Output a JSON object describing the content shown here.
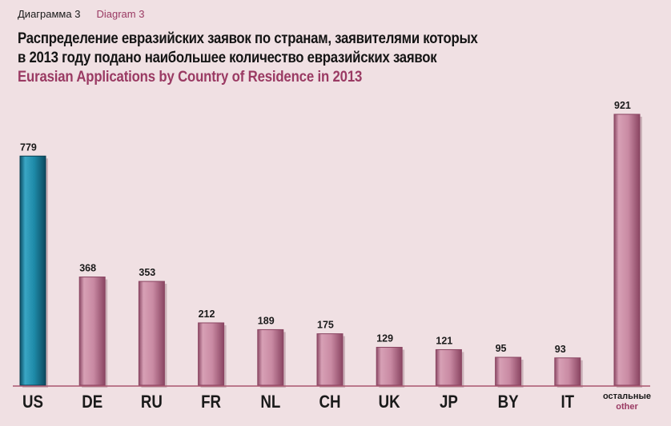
{
  "header": {
    "diagram_ru": "Диаграмма 3",
    "diagram_en": "Diagram 3",
    "title_ru_line1": "Распределение евразийских заявок по странам, заявителями которых",
    "title_ru_line2": "в 2013 году подано наибольшее количество евразийских заявок",
    "title_en": "Eurasian Applications by Country of Residence in 2013"
  },
  "colors": {
    "background": "#f0e0e3",
    "highlight_bar": "#1e8aa8",
    "bar": "#c98aa3",
    "accent_text": "#9a3a63"
  },
  "chart_data": {
    "type": "bar",
    "title": "Eurasian Applications by Country of Residence in 2013",
    "categories": [
      "US",
      "DE",
      "RU",
      "FR",
      "NL",
      "CH",
      "UK",
      "JP",
      "BY",
      "IT",
      "остальные other"
    ],
    "category_labels": [
      {
        "text": "US"
      },
      {
        "text": "DE"
      },
      {
        "text": "RU"
      },
      {
        "text": "FR"
      },
      {
        "text": "NL"
      },
      {
        "text": "CH"
      },
      {
        "text": "UK"
      },
      {
        "text": "JP"
      },
      {
        "text": "BY"
      },
      {
        "text": "IT"
      },
      {
        "text_ru": "остальные",
        "text_en": "other"
      }
    ],
    "values": [
      779,
      368,
      353,
      212,
      189,
      175,
      129,
      121,
      95,
      93,
      921
    ],
    "highlight_index": 0,
    "ylim": [
      0,
      921
    ],
    "grid": false,
    "legend": "none"
  }
}
